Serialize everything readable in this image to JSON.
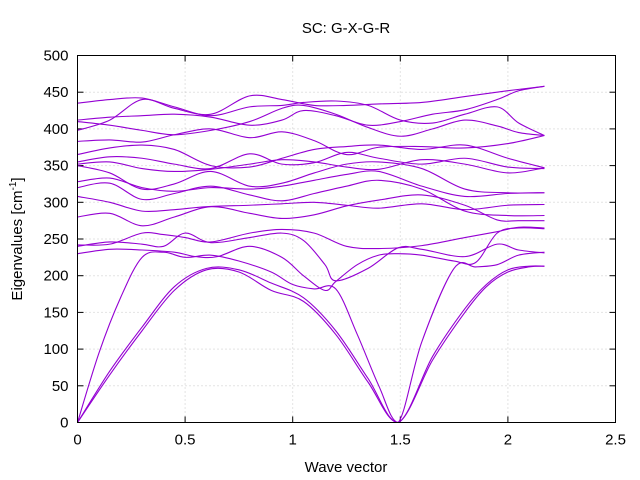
{
  "chart_data": {
    "type": "line",
    "title": "SC: G-X-G-R",
    "xlabel": "Wave vector",
    "ylabel": "Eigenvalues [cm",
    "ylabel_sup": "-1",
    "ylabel_close": "]",
    "xlim": [
      0,
      2.5
    ],
    "ylim": [
      0,
      500
    ],
    "xticks": [
      "0",
      "0.5",
      "1",
      "1.5",
      "2",
      "2.5"
    ],
    "yticks": [
      "0",
      "50",
      "100",
      "150",
      "200",
      "250",
      "300",
      "350",
      "400",
      "450",
      "500"
    ],
    "grid": true,
    "legend": "none",
    "line_color": "#9400d3",
    "series": [
      {
        "x": [
          0,
          0.15,
          0.3,
          0.45,
          0.6,
          0.75,
          0.9,
          1.05,
          1.2,
          1.35,
          1.49,
          1.65,
          1.8,
          1.9,
          2.0,
          2.1,
          2.17
        ],
        "values": [
          0,
          65,
          125,
          180,
          208,
          205,
          180,
          165,
          120,
          55,
          0,
          85,
          150,
          185,
          205,
          212,
          213
        ]
      },
      {
        "x": [
          0,
          0.15,
          0.3,
          0.45,
          0.6,
          0.75,
          0.9,
          1.05,
          1.2,
          1.35,
          1.49,
          1.65,
          1.8,
          1.9,
          2.0,
          2.1,
          2.17
        ],
        "values": [
          0,
          70,
          130,
          185,
          210,
          208,
          190,
          170,
          125,
          60,
          0,
          90,
          155,
          188,
          208,
          213,
          213
        ]
      },
      {
        "x": [
          0,
          0.1,
          0.2,
          0.3,
          0.4,
          0.5,
          0.62,
          0.75,
          0.9,
          1.0,
          1.1,
          1.2,
          1.3,
          1.4,
          1.49,
          1.6,
          1.75,
          1.85,
          1.95,
          2.05,
          2.17
        ],
        "values": [
          0,
          95,
          170,
          225,
          232,
          225,
          228,
          220,
          205,
          188,
          182,
          182,
          120,
          50,
          0,
          110,
          210,
          212,
          215,
          228,
          232
        ]
      },
      {
        "x": [
          0,
          0.15,
          0.3,
          0.45,
          0.55,
          0.65,
          0.8,
          0.95,
          1.05,
          1.15,
          1.2,
          1.3,
          1.4,
          1.49,
          1.6,
          1.75,
          1.85,
          1.95,
          2.05,
          2.17
        ],
        "values": [
          230,
          236,
          235,
          232,
          226,
          226,
          240,
          225,
          200,
          180,
          192,
          215,
          228,
          230,
          228,
          220,
          218,
          258,
          265,
          264
        ]
      },
      {
        "x": [
          0,
          0.15,
          0.3,
          0.4,
          0.5,
          0.62,
          0.8,
          0.95,
          1.05,
          1.15,
          1.2,
          1.35,
          1.49,
          1.6,
          1.8,
          1.95,
          2.05,
          2.17
        ],
        "values": [
          240,
          246,
          243,
          240,
          258,
          245,
          252,
          258,
          248,
          215,
          193,
          210,
          238,
          236,
          226,
          243,
          235,
          231
        ]
      },
      {
        "x": [
          0,
          0.15,
          0.3,
          0.4,
          0.5,
          0.62,
          0.8,
          0.95,
          1.1,
          1.25,
          1.4,
          1.6,
          1.8,
          1.95,
          2.05,
          2.17
        ],
        "values": [
          242,
          243,
          258,
          256,
          252,
          246,
          258,
          263,
          258,
          240,
          237,
          241,
          252,
          260,
          266,
          265
        ]
      },
      {
        "x": [
          0,
          0.15,
          0.3,
          0.45,
          0.62,
          0.8,
          0.95,
          1.1,
          1.25,
          1.4,
          1.6,
          1.8,
          1.95,
          2.05,
          2.17
        ],
        "values": [
          280,
          285,
          268,
          280,
          294,
          285,
          278,
          283,
          295,
          303,
          310,
          296,
          276,
          275,
          275
        ]
      },
      {
        "x": [
          0,
          0.15,
          0.3,
          0.45,
          0.6,
          0.8,
          0.95,
          1.1,
          1.25,
          1.4,
          1.6,
          1.8,
          2.0,
          2.17
        ],
        "values": [
          308,
          300,
          288,
          290,
          294,
          296,
          298,
          300,
          296,
          292,
          298,
          290,
          296,
          297
        ]
      },
      {
        "x": [
          0,
          0.15,
          0.3,
          0.45,
          0.62,
          0.8,
          0.95,
          1.1,
          1.25,
          1.4,
          1.6,
          1.8,
          2.0,
          2.17
        ],
        "values": [
          320,
          326,
          304,
          312,
          322,
          310,
          302,
          312,
          322,
          330,
          318,
          288,
          282,
          282
        ]
      },
      {
        "x": [
          0,
          0.15,
          0.3,
          0.45,
          0.62,
          0.8,
          0.95,
          1.1,
          1.25,
          1.4,
          1.6,
          1.8,
          2.0,
          2.17
        ],
        "values": [
          328,
          333,
          320,
          315,
          320,
          318,
          322,
          330,
          338,
          342,
          322,
          308,
          312,
          313
        ]
      },
      {
        "x": [
          0,
          0.15,
          0.3,
          0.45,
          0.62,
          0.8,
          0.95,
          1.1,
          1.25,
          1.4,
          1.6,
          1.8,
          2.0,
          2.17
        ],
        "values": [
          350,
          340,
          318,
          325,
          342,
          322,
          326,
          340,
          352,
          355,
          346,
          318,
          313,
          313
        ]
      },
      {
        "x": [
          0,
          0.15,
          0.3,
          0.45,
          0.62,
          0.8,
          0.95,
          1.1,
          1.25,
          1.4,
          1.6,
          1.8,
          2.0,
          2.17
        ],
        "values": [
          352,
          355,
          346,
          342,
          345,
          352,
          358,
          355,
          348,
          345,
          358,
          352,
          340,
          347
        ]
      },
      {
        "x": [
          0,
          0.15,
          0.3,
          0.45,
          0.62,
          0.8,
          0.95,
          1.1,
          1.25,
          1.4,
          1.6,
          1.8,
          2.0,
          2.17
        ],
        "values": [
          355,
          362,
          360,
          352,
          346,
          366,
          352,
          354,
          368,
          360,
          352,
          360,
          348,
          346
        ]
      },
      {
        "x": [
          0,
          0.15,
          0.3,
          0.45,
          0.62,
          0.8,
          0.95,
          1.1,
          1.25,
          1.4,
          1.6,
          1.8,
          2.0,
          2.17
        ],
        "values": [
          365,
          374,
          378,
          372,
          350,
          348,
          360,
          372,
          376,
          378,
          372,
          378,
          360,
          347
        ]
      },
      {
        "x": [
          0,
          0.15,
          0.3,
          0.45,
          0.62,
          0.8,
          0.95,
          1.1,
          1.25,
          1.4,
          1.6,
          1.8,
          2.0,
          2.17
        ],
        "values": [
          383,
          385,
          382,
          392,
          400,
          388,
          396,
          384,
          365,
          375,
          376,
          374,
          380,
          391
        ]
      },
      {
        "x": [
          0,
          0.15,
          0.3,
          0.45,
          0.62,
          0.8,
          0.95,
          1.05,
          1.2,
          1.35,
          1.5,
          1.65,
          1.8,
          1.95,
          2.05,
          2.17
        ],
        "values": [
          410,
          405,
          398,
          392,
          398,
          410,
          428,
          432,
          420,
          402,
          390,
          400,
          412,
          404,
          395,
          391
        ]
      },
      {
        "x": [
          0,
          0.15,
          0.3,
          0.45,
          0.62,
          0.8,
          0.95,
          1.05,
          1.2,
          1.35,
          1.5,
          1.65,
          1.8,
          1.95,
          2.05,
          2.17
        ],
        "values": [
          412,
          416,
          418,
          420,
          416,
          405,
          412,
          425,
          418,
          405,
          410,
          420,
          426,
          440,
          452,
          458
        ]
      },
      {
        "x": [
          0,
          0.15,
          0.3,
          0.45,
          0.62,
          0.8,
          0.95,
          1.05,
          1.2,
          1.35,
          1.5,
          1.65,
          1.8,
          1.95,
          2.05,
          2.17
        ],
        "values": [
          435,
          440,
          442,
          430,
          418,
          430,
          432,
          436,
          438,
          432,
          412,
          408,
          420,
          430,
          408,
          391
        ]
      },
      {
        "x": [
          0,
          0.15,
          0.3,
          0.45,
          0.62,
          0.8,
          0.95,
          1.1,
          1.25,
          1.4,
          1.6,
          1.8,
          2.0,
          2.17
        ],
        "values": [
          398,
          412,
          440,
          428,
          420,
          445,
          440,
          432,
          432,
          434,
          436,
          444,
          452,
          458
        ]
      }
    ]
  }
}
